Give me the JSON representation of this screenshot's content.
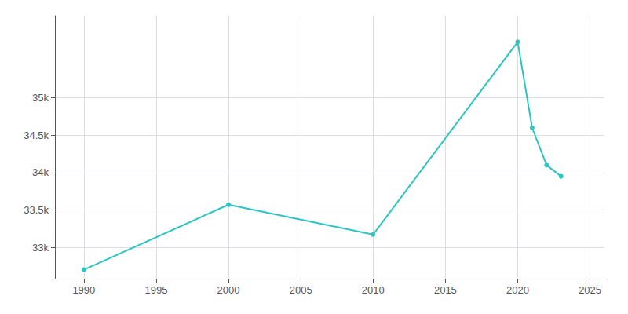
{
  "chart_data": {
    "type": "line",
    "x": [
      1990,
      2000,
      2010,
      2020,
      2021,
      2022,
      2023
    ],
    "values": [
      32700,
      33570,
      33170,
      35750,
      34600,
      34100,
      33950
    ],
    "color": "#2ec4c4",
    "marker": "circle",
    "xlim": [
      1988,
      2026
    ],
    "xticks": [
      1990,
      1995,
      2000,
      2005,
      2010,
      2015,
      2020,
      2025
    ],
    "ylim": [
      32580,
      36100
    ],
    "yticks": [
      {
        "value": 33000,
        "label": "33k"
      },
      {
        "value": 33500,
        "label": "33.5k"
      },
      {
        "value": 34000,
        "label": "34k"
      },
      {
        "value": 34500,
        "label": "34.5k"
      },
      {
        "value": 35000,
        "label": "35k"
      }
    ],
    "grid": true
  }
}
